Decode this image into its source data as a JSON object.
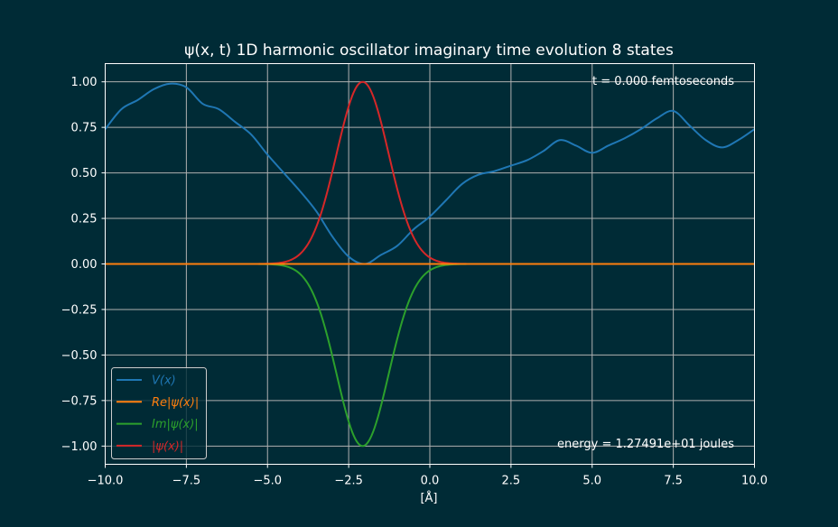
{
  "chart_data": {
    "type": "line",
    "title": "ψ(x, t) 1D harmonic oscillator imaginary time evolution 8 states",
    "xlabel": "[Å]",
    "ylabel": "",
    "xlim": [
      -10,
      10
    ],
    "ylim": [
      -1.1,
      1.1
    ],
    "grid": true,
    "legend_position": "lower-left",
    "xticks": [
      -10.0,
      -7.5,
      -5.0,
      -2.5,
      0.0,
      2.5,
      5.0,
      7.5,
      10.0
    ],
    "xtick_labels": [
      "−10.0",
      "−7.5",
      "−5.0",
      "−2.5",
      "0.0",
      "2.5",
      "5.0",
      "7.5",
      "10.0"
    ],
    "yticks": [
      1.0,
      0.75,
      0.5,
      0.25,
      0.0,
      -0.25,
      -0.5,
      -0.75,
      -1.0
    ],
    "ytick_labels": [
      "1.00",
      "0.75",
      "0.50",
      "0.25",
      "0.00",
      "−0.25",
      "−0.50",
      "−0.75",
      "−1.00"
    ],
    "annotations": {
      "time": "t = 0.000 femtoseconds",
      "energy": "energy = 1.27491e+01 joules"
    },
    "series": [
      {
        "name": "V(x)",
        "legend_label": "V(x)",
        "color": "#1f77b4",
        "x": [
          -10.0,
          -9.5,
          -9.0,
          -8.5,
          -8.0,
          -7.5,
          -7.0,
          -6.5,
          -6.0,
          -5.5,
          -5.0,
          -4.5,
          -4.0,
          -3.5,
          -3.0,
          -2.5,
          -2.0,
          -1.5,
          -1.0,
          -0.5,
          0.0,
          0.5,
          1.0,
          1.5,
          2.0,
          2.5,
          3.0,
          3.5,
          4.0,
          4.5,
          5.0,
          5.5,
          6.0,
          6.5,
          7.0,
          7.5,
          8.0,
          8.5,
          9.0,
          9.5,
          10.0
        ],
        "values": [
          0.74,
          0.85,
          0.9,
          0.96,
          0.99,
          0.97,
          0.88,
          0.85,
          0.78,
          0.71,
          0.6,
          0.5,
          0.4,
          0.29,
          0.15,
          0.04,
          0.0,
          0.05,
          0.1,
          0.19,
          0.26,
          0.35,
          0.44,
          0.49,
          0.51,
          0.54,
          0.57,
          0.62,
          0.68,
          0.65,
          0.61,
          0.65,
          0.69,
          0.74,
          0.8,
          0.84,
          0.76,
          0.68,
          0.64,
          0.68,
          0.74
        ]
      },
      {
        "name": "Re|ψ(x)|",
        "legend_label": "Re|ψ(x)|",
        "color": "#ff7f0e",
        "x": [
          -10.0,
          10.0
        ],
        "values": [
          0.0,
          0.0
        ]
      },
      {
        "name": "Im|ψ(x)|",
        "legend_label": "Im|ψ(x)|",
        "color": "#2ca02c",
        "gaussian": {
          "amplitude": -1.0,
          "center": -2.07,
          "sigma": 0.8
        }
      },
      {
        "name": "|ψ(x)|",
        "legend_label": "|ψ(x)|",
        "color": "#d62728",
        "gaussian": {
          "amplitude": 1.0,
          "center": -2.07,
          "sigma": 0.8
        }
      }
    ]
  }
}
